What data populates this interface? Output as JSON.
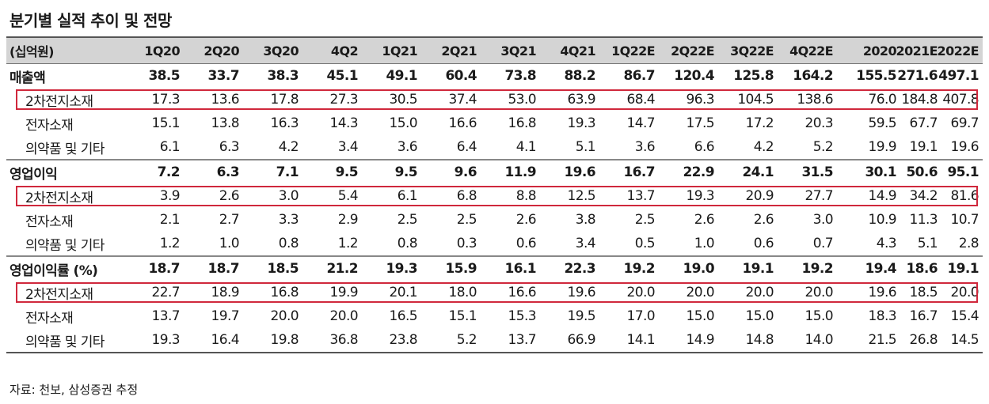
{
  "title": "분기별 실적 추이 및 전망",
  "unit_label": "(십억원)",
  "columns": [
    "1Q20",
    "2Q20",
    "3Q20",
    "4Q2",
    "1Q21",
    "2Q21",
    "3Q21",
    "4Q21",
    "1Q22E",
    "2Q22E",
    "3Q22E",
    "4Q22E",
    "2020",
    "2021E",
    "2022E"
  ],
  "groups": [
    {
      "rows": [
        {
          "label": "매출액",
          "values": [
            "38.5",
            "33.7",
            "38.3",
            "45.1",
            "49.1",
            "60.4",
            "73.8",
            "88.2",
            "86.7",
            "120.4",
            "125.8",
            "164.2",
            "155.5",
            "271.6",
            "497.1"
          ]
        },
        {
          "label": "2차전지소재",
          "values": [
            "17.3",
            "13.6",
            "17.8",
            "27.3",
            "30.5",
            "37.4",
            "53.0",
            "63.9",
            "68.4",
            "96.3",
            "104.5",
            "138.6",
            "76.0",
            "184.8",
            "407.8"
          ]
        },
        {
          "label": "전자소재",
          "values": [
            "15.1",
            "13.8",
            "16.3",
            "14.3",
            "15.0",
            "16.6",
            "16.8",
            "19.3",
            "14.7",
            "17.5",
            "17.2",
            "20.3",
            "59.5",
            "67.7",
            "69.7"
          ]
        },
        {
          "label": "의약품 및 기타",
          "values": [
            "6.1",
            "6.3",
            "4.2",
            "3.4",
            "3.6",
            "6.4",
            "4.1",
            "5.1",
            "3.6",
            "6.6",
            "4.2",
            "5.2",
            "19.9",
            "19.1",
            "19.6"
          ]
        }
      ]
    },
    {
      "rows": [
        {
          "label": "영업이익",
          "values": [
            "7.2",
            "6.3",
            "7.1",
            "9.5",
            "9.5",
            "9.6",
            "11.9",
            "19.6",
            "16.7",
            "22.9",
            "24.1",
            "31.5",
            "30.1",
            "50.6",
            "95.1"
          ]
        },
        {
          "label": "2차전지소재",
          "values": [
            "3.9",
            "2.6",
            "3.0",
            "5.4",
            "6.1",
            "6.8",
            "8.8",
            "12.5",
            "13.7",
            "19.3",
            "20.9",
            "27.7",
            "14.9",
            "34.2",
            "81.6"
          ]
        },
        {
          "label": "전자소재",
          "values": [
            "2.1",
            "2.7",
            "3.3",
            "2.9",
            "2.5",
            "2.5",
            "2.6",
            "3.8",
            "2.5",
            "2.6",
            "2.6",
            "3.0",
            "10.9",
            "11.3",
            "10.7"
          ]
        },
        {
          "label": "의약품 및 기타",
          "values": [
            "1.2",
            "1.0",
            "0.8",
            "1.2",
            "0.8",
            "0.3",
            "0.6",
            "3.4",
            "0.5",
            "1.0",
            "0.6",
            "0.7",
            "4.3",
            "5.1",
            "2.8"
          ]
        }
      ]
    },
    {
      "rows": [
        {
          "label": "영업이익률 (%)",
          "values": [
            "18.7",
            "18.7",
            "18.5",
            "21.2",
            "19.3",
            "15.9",
            "16.1",
            "22.3",
            "19.2",
            "19.0",
            "19.1",
            "19.2",
            "19.4",
            "18.6",
            "19.1"
          ]
        },
        {
          "label": "2차전지소재",
          "values": [
            "22.7",
            "18.9",
            "16.8",
            "19.9",
            "20.1",
            "18.0",
            "16.6",
            "19.6",
            "20.0",
            "20.0",
            "20.0",
            "20.0",
            "19.6",
            "18.5",
            "20.0"
          ]
        },
        {
          "label": "전자소재",
          "values": [
            "13.7",
            "19.7",
            "20.0",
            "20.0",
            "16.5",
            "15.1",
            "15.3",
            "19.5",
            "17.0",
            "15.0",
            "15.0",
            "15.0",
            "18.3",
            "16.7",
            "15.4"
          ]
        },
        {
          "label": "의약품 및 기타",
          "values": [
            "19.3",
            "16.4",
            "19.8",
            "36.8",
            "23.8",
            "5.2",
            "13.7",
            "66.9",
            "14.1",
            "14.9",
            "14.8",
            "14.0",
            "21.5",
            "26.8",
            "14.5"
          ]
        }
      ]
    }
  ],
  "highlight_color": "#d0283c",
  "source": "자료: 천보, 삼성증권 추정"
}
